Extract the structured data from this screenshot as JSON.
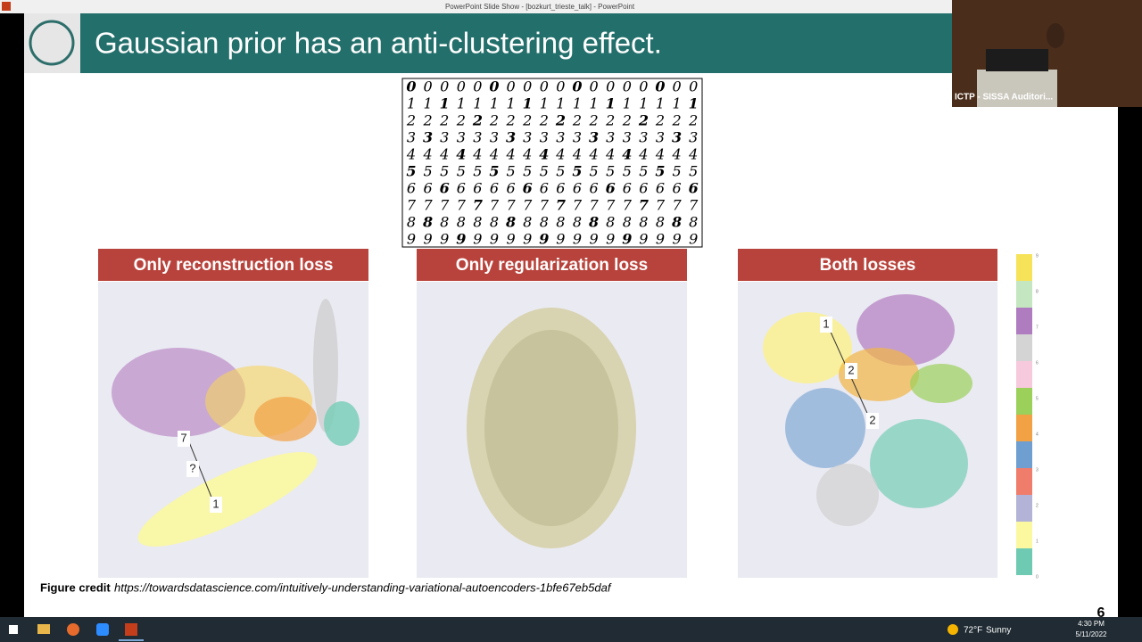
{
  "window": {
    "title": "PowerPoint Slide Show - [bozkurt_trieste_talk] - PowerPoint"
  },
  "slide": {
    "title": "Gaussian prior has an anti-clustering effect.",
    "digit_rows": [
      "0",
      "1",
      "2",
      "3",
      "4",
      "5",
      "6",
      "7",
      "8",
      "9"
    ],
    "panels": [
      {
        "title": "Only reconstruction loss",
        "annotations": [
          "7",
          "?",
          "1"
        ]
      },
      {
        "title": "Only regularization loss",
        "annotations": []
      },
      {
        "title": "Both losses",
        "annotations": [
          "1",
          "2",
          "2"
        ]
      }
    ],
    "colorbar_labels": [
      "9",
      "8",
      "7",
      "6",
      "5",
      "4",
      "3",
      "2",
      "1",
      "0"
    ],
    "credit_label": "Figure credit",
    "credit_url": "https://towardsdatascience.com/intuitively-understanding-variational-autoencoders-1bfe67eb5daf",
    "page_number": "6"
  },
  "video": {
    "label": "ICTP - SISSA Auditori..."
  },
  "taskbar": {
    "temperature": "72°F",
    "weather": "Sunny",
    "time": "4:30 PM",
    "date": "5/11/2022"
  }
}
